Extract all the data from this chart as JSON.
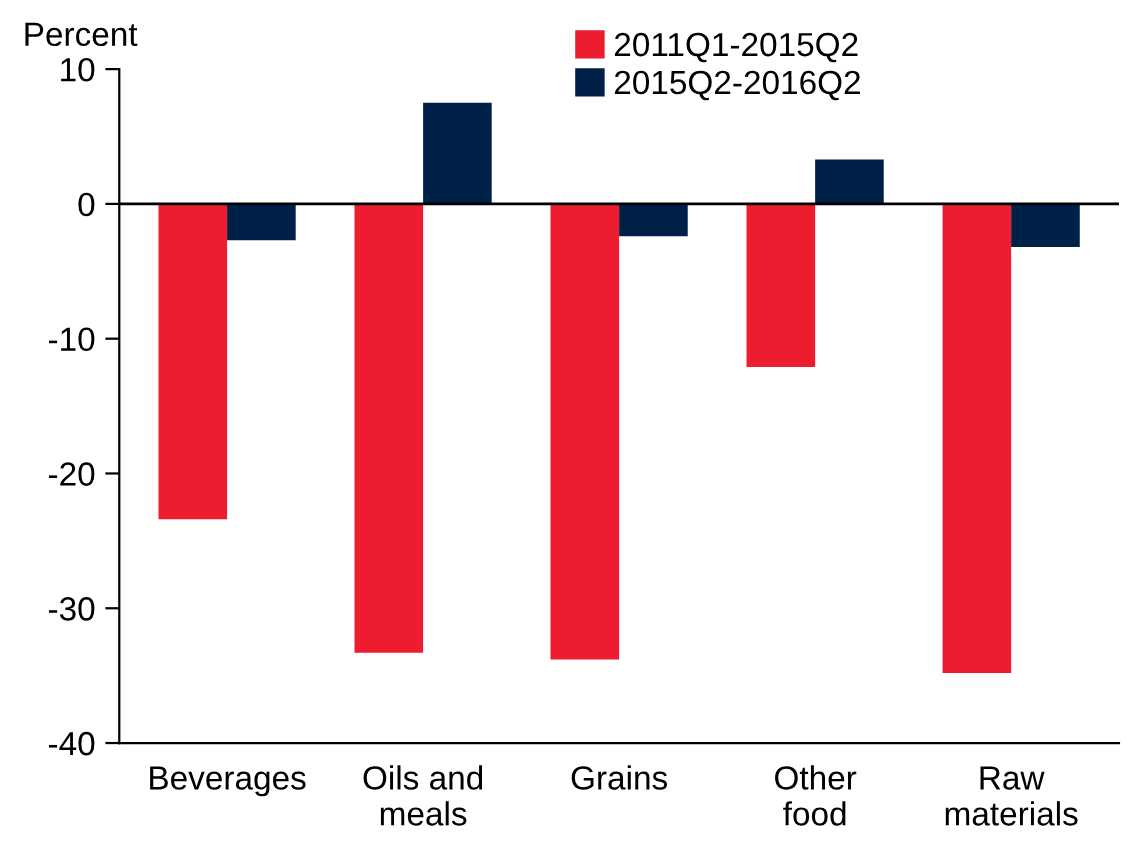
{
  "chart_data": {
    "type": "bar",
    "ylabel": "Percent",
    "categories": [
      "Beverages",
      "Oils and\nmeals",
      "Grains",
      "Other\nfood",
      "Raw\nmaterials"
    ],
    "series": [
      {
        "name": "2011Q1-2015Q2",
        "color": "#ed1c2e",
        "values": [
          -23.4,
          -33.3,
          -33.8,
          -12.1,
          -34.8
        ]
      },
      {
        "name": "2015Q2-2016Q2",
        "color": "#002147",
        "values": [
          -2.7,
          7.5,
          -2.4,
          3.3,
          -3.2
        ]
      }
    ],
    "ylim": [
      -40,
      10
    ],
    "yticks": [
      -40,
      -30,
      -20,
      -10,
      0,
      10
    ],
    "grid": false,
    "legend": "top",
    "ref_lines": [
      {
        "axis": "y",
        "value": 0,
        "color": "#000000"
      }
    ]
  }
}
